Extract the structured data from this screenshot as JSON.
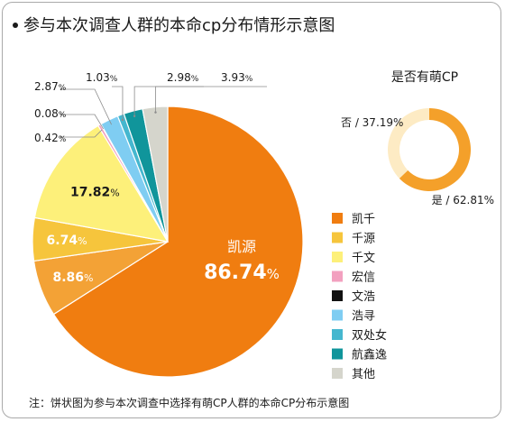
{
  "title": "参与本次调查人群的本命cp分布情形示意图",
  "note": "注：饼状图为参与本次调查中选择有萌CP人群的本命CP分布示意图",
  "chart_data": [
    {
      "type": "pie",
      "title": "",
      "center_label": "凯源",
      "slices": [
        {
          "name": "凯千",
          "value": 86.74,
          "label": "86.74",
          "color": "#f07d10"
        },
        {
          "name": "凯源",
          "value": 8.86,
          "label": "8.86",
          "color": "#f3a236"
        },
        {
          "name": "千源",
          "value": 6.74,
          "label": "6.74",
          "color": "#f6c53c"
        },
        {
          "name": "千文",
          "value": 17.82,
          "label": "17.82",
          "color": "#fdf07a"
        },
        {
          "name": "宏信",
          "value": 0.42,
          "label": "0.42",
          "color": "#f2a0bf"
        },
        {
          "name": "文浩",
          "value": 0.08,
          "label": "0.08",
          "color": "#111111"
        },
        {
          "name": "浩寻",
          "value": 2.87,
          "label": "2.87",
          "color": "#7fcdf2"
        },
        {
          "name": "双处女",
          "value": 1.03,
          "label": "1.03",
          "color": "#45b7cf"
        },
        {
          "name": "航鑫逸",
          "value": 2.98,
          "label": "2.98",
          "color": "#10959b"
        },
        {
          "name": "其他",
          "value": 3.93,
          "label": "3.93",
          "color": "#d5d5cc"
        }
      ],
      "unit": "%"
    },
    {
      "type": "pie",
      "title": "是否有萌CP",
      "slices": [
        {
          "name": "是",
          "value": 62.81,
          "label": "是 / 62.81%",
          "color": "#f4a02a"
        },
        {
          "name": "否",
          "value": 37.19,
          "label": "否 / 37.19%",
          "color": "#fdebc4"
        }
      ]
    }
  ],
  "legend": [
    {
      "name": "凯千",
      "color": "#f07d10"
    },
    {
      "name": "千源",
      "color": "#f6c53c"
    },
    {
      "name": "千文",
      "color": "#fdf07a"
    },
    {
      "name": "宏信",
      "color": "#f2a0bf"
    },
    {
      "name": "文浩",
      "color": "#111111"
    },
    {
      "name": "浩寻",
      "color": "#7fcdf2"
    },
    {
      "name": "双处女",
      "color": "#45b7cf"
    },
    {
      "name": "航鑫逸",
      "color": "#10959b"
    },
    {
      "name": "其他",
      "color": "#d5d5cc"
    }
  ]
}
